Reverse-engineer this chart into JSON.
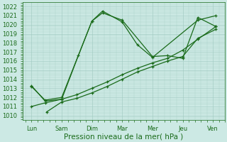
{
  "x_labels": [
    "Lun",
    "Sam",
    "Dim",
    "Mar",
    "Mer",
    "Jeu",
    "Ven"
  ],
  "line_color": "#1a6b1a",
  "bg_color": "#cce9e4",
  "grid_color": "#9fc8c0",
  "ylim": [
    1009.5,
    1022.5
  ],
  "yticks": [
    1010,
    1011,
    1012,
    1013,
    1014,
    1015,
    1016,
    1017,
    1018,
    1019,
    1020,
    1021,
    1022
  ],
  "xlabel": "Pression niveau de la mer( hPa )",
  "xlabel_fontsize": 7.5,
  "tick_fontsize": 6.0,
  "line1_x": [
    0.0,
    0.45,
    1.0,
    1.55,
    2.0,
    2.35,
    3.0,
    3.5,
    4.0,
    5.5,
    6.1
  ],
  "line1_y": [
    1013.3,
    1011.6,
    1011.8,
    1016.6,
    1020.4,
    1021.5,
    1020.3,
    1017.8,
    1016.4,
    1020.5,
    1021.0
  ],
  "line2_x": [
    0.0,
    0.45,
    1.0,
    2.0,
    2.35,
    3.0,
    4.0,
    4.5,
    5.0,
    5.5,
    6.1
  ],
  "line2_y": [
    1013.2,
    1011.7,
    1012.0,
    1020.4,
    1021.3,
    1020.5,
    1016.5,
    1016.6,
    1016.3,
    1020.8,
    1019.8
  ],
  "line3_x": [
    0.0,
    0.45,
    1.0,
    1.5,
    2.0,
    2.5,
    3.0,
    3.5,
    4.0,
    4.5,
    5.0,
    5.5,
    6.1
  ],
  "line3_y": [
    1011.0,
    1011.4,
    1011.8,
    1012.3,
    1013.0,
    1013.7,
    1014.5,
    1015.2,
    1015.8,
    1016.3,
    1017.2,
    1018.4,
    1019.8
  ],
  "line4_x": [
    0.5,
    1.0,
    1.5,
    2.0,
    2.5,
    3.0,
    3.5,
    4.0,
    4.5,
    5.0,
    5.5,
    6.1
  ],
  "line4_y": [
    1010.4,
    1011.5,
    1011.9,
    1012.5,
    1013.2,
    1014.0,
    1014.8,
    1015.4,
    1016.0,
    1016.5,
    1018.5,
    1019.5
  ]
}
